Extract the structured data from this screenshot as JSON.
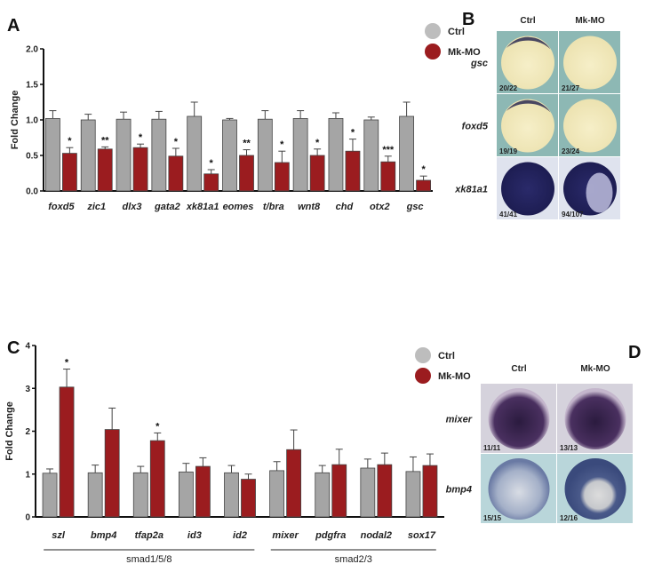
{
  "colors": {
    "ctrl": "#a5a5a5",
    "mk": "#9b1c1f"
  },
  "chart_data": [
    {
      "panel": "A",
      "type": "bar",
      "ylabel": "Fold Change",
      "ylim": [
        0,
        2
      ],
      "yticks": [
        "0.0",
        "0.5",
        "1.0",
        "1.5",
        "2.0"
      ],
      "legend": [
        "Ctrl",
        "Mk-MO"
      ],
      "legend_position": "top-right",
      "categories": [
        "foxd5",
        "zic1",
        "dlx3",
        "gata2",
        "xk81a1",
        "eomes",
        "t/bra",
        "wnt8",
        "chd",
        "otx2",
        "gsc"
      ],
      "series": [
        {
          "name": "Ctrl",
          "values": [
            1.02,
            1.0,
            1.01,
            1.01,
            1.05,
            1.0,
            1.01,
            1.02,
            1.02,
            1.0,
            1.05
          ],
          "errors": [
            0.11,
            0.08,
            0.1,
            0.11,
            0.2,
            0.02,
            0.12,
            0.11,
            0.08,
            0.04,
            0.2
          ]
        },
        {
          "name": "Mk-MO",
          "values": [
            0.53,
            0.59,
            0.61,
            0.49,
            0.24,
            0.5,
            0.4,
            0.5,
            0.56,
            0.41,
            0.15
          ],
          "errors": [
            0.08,
            0.03,
            0.05,
            0.11,
            0.06,
            0.08,
            0.16,
            0.09,
            0.17,
            0.08,
            0.06
          ],
          "significance": [
            "*",
            "**",
            "*",
            "*",
            "*",
            "**",
            "*",
            "*",
            "*",
            "***",
            "*"
          ]
        }
      ]
    },
    {
      "panel": "C",
      "type": "bar",
      "ylabel": "Fold Change",
      "ylim": [
        0,
        4
      ],
      "yticks": [
        "0",
        "1",
        "2",
        "3",
        "4"
      ],
      "legend": [
        "Ctrl",
        "Mk-MO"
      ],
      "legend_position": "top-right",
      "categories": [
        "szl",
        "bmp4",
        "tfap2a",
        "id3",
        "id2",
        "mixer",
        "pdgfra",
        "nodal2",
        "sox17"
      ],
      "groups": [
        {
          "label": "smad1/5/8",
          "from": 0,
          "to": 4
        },
        {
          "label": "smad2/3",
          "from": 5,
          "to": 8
        }
      ],
      "series": [
        {
          "name": "Ctrl",
          "values": [
            1.02,
            1.03,
            1.03,
            1.05,
            1.03,
            1.08,
            1.03,
            1.14,
            1.06
          ],
          "errors": [
            0.1,
            0.18,
            0.15,
            0.2,
            0.17,
            0.21,
            0.17,
            0.21,
            0.34
          ]
        },
        {
          "name": "Mk-MO",
          "values": [
            3.03,
            2.04,
            1.78,
            1.18,
            0.88,
            1.57,
            1.22,
            1.22,
            1.2
          ],
          "errors": [
            0.42,
            0.5,
            0.18,
            0.2,
            0.12,
            0.46,
            0.36,
            0.27,
            0.27
          ],
          "significance": [
            "*",
            "",
            "*",
            "",
            "",
            "",
            "",
            "",
            ""
          ]
        }
      ]
    }
  ],
  "panel_b": {
    "label": "B",
    "columns": [
      "Ctrl",
      "Mk-MO"
    ],
    "rows": [
      {
        "gene": "gsc",
        "counts": [
          "20/22",
          "21/27"
        ]
      },
      {
        "gene": "foxd5",
        "counts": [
          "19/19",
          "23/24"
        ]
      },
      {
        "gene": "xk81a1",
        "counts": [
          "41/41",
          "94/107"
        ]
      }
    ]
  },
  "panel_d": {
    "label": "D",
    "columns": [
      "Ctrl",
      "Mk-MO"
    ],
    "rows": [
      {
        "gene": "mixer",
        "counts": [
          "11/11",
          "13/13"
        ]
      },
      {
        "gene": "bmp4",
        "counts": [
          "15/15",
          "12/16"
        ]
      }
    ]
  }
}
